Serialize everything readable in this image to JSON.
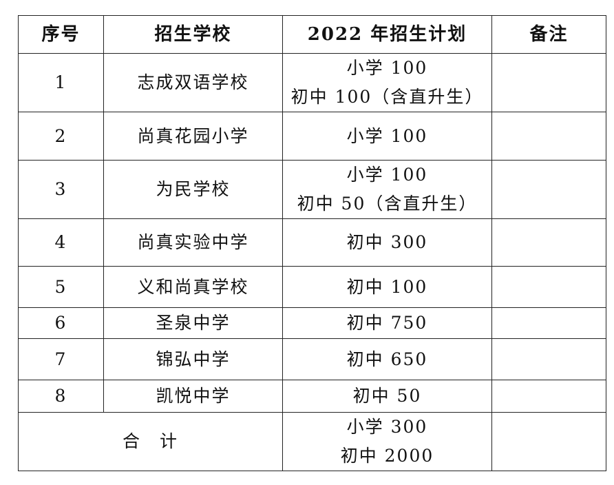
{
  "headers": [
    "序号",
    "招生学校",
    "2022 年招生计划",
    "备注"
  ],
  "rows": [
    {
      "no": "1",
      "school": "志成双语学校",
      "plan": [
        "小学 100",
        "初中 100（含直升生）"
      ],
      "note": ""
    },
    {
      "no": "2",
      "school": "尚真花园小学",
      "plan": [
        "小学 100"
      ],
      "note": ""
    },
    {
      "no": "3",
      "school": "为民学校",
      "plan": [
        "小学 100",
        "初中 50（含直升生）"
      ],
      "note": ""
    },
    {
      "no": "4",
      "school": "尚真实验中学",
      "plan": [
        "初中 300"
      ],
      "note": ""
    },
    {
      "no": "5",
      "school": "义和尚真学校",
      "plan": [
        "初中 100"
      ],
      "note": ""
    },
    {
      "no": "6",
      "school": "圣泉中学",
      "plan": [
        "初中 750"
      ],
      "note": ""
    },
    {
      "no": "7",
      "school": "锦弘中学",
      "plan": [
        "初中 650"
      ],
      "note": ""
    },
    {
      "no": "8",
      "school": "凯悦中学",
      "plan": [
        "初中 50"
      ],
      "note": ""
    }
  ],
  "total": {
    "label": "合　计",
    "plan": [
      "小学 300",
      "初中 2000"
    ],
    "note": ""
  }
}
